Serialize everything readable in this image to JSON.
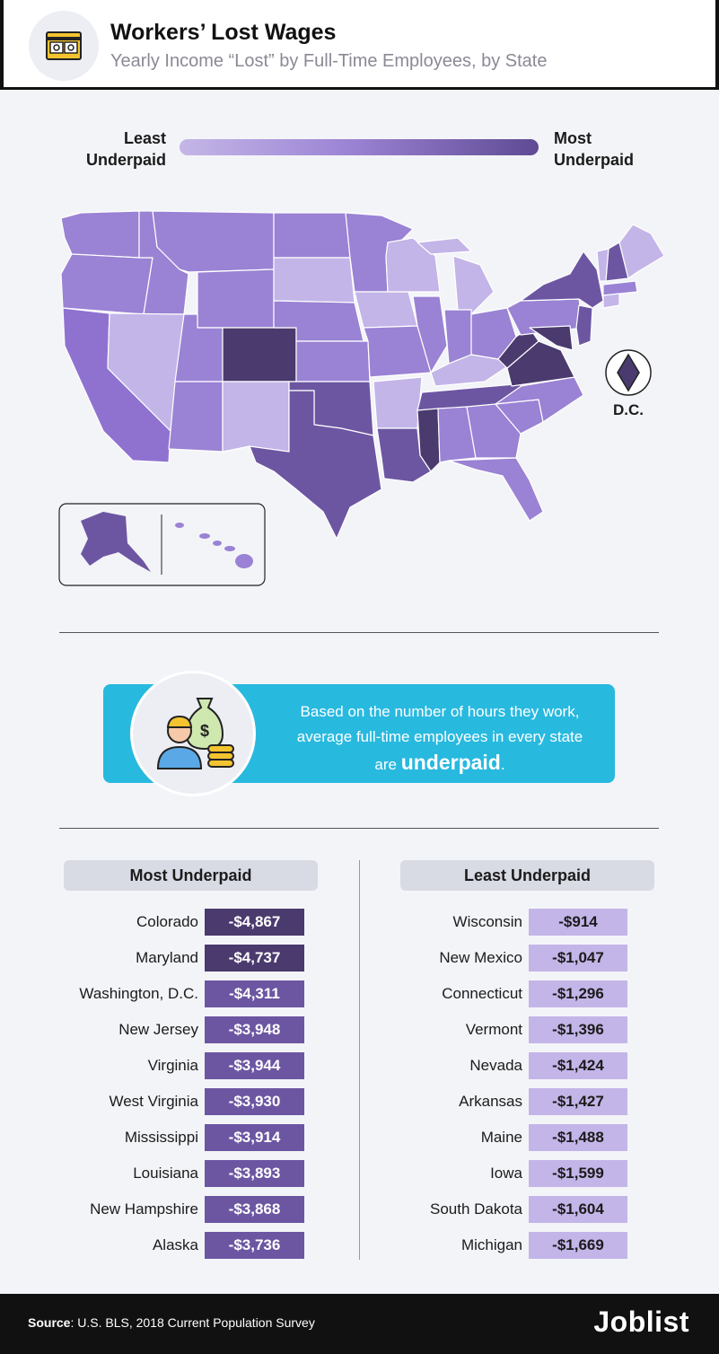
{
  "header": {
    "title": "Workers’ Lost Wages",
    "subtitle": "Yearly Income “Lost” by Full-Time Employees, by State"
  },
  "legend": {
    "left_line1": "Least",
    "left_line2": "Underpaid",
    "right_line1": "Most",
    "right_line2": "Underpaid"
  },
  "map": {
    "dc_label": "D.C."
  },
  "callout": {
    "line1": "Based on the number of hours they work,",
    "line2": "average full-time employees in every state",
    "line3_prefix": "are ",
    "emphasis": "underpaid",
    "line3_suffix": "."
  },
  "tables": {
    "most_header": "Most Underpaid",
    "least_header": "Least Underpaid",
    "most": [
      {
        "state": "Colorado",
        "value": "-$4,867"
      },
      {
        "state": "Maryland",
        "value": "-$4,737"
      },
      {
        "state": "Washington, D.C.",
        "value": "-$4,311"
      },
      {
        "state": "New Jersey",
        "value": "-$3,948"
      },
      {
        "state": "Virginia",
        "value": "-$3,944"
      },
      {
        "state": "West Virginia",
        "value": "-$3,930"
      },
      {
        "state": "Mississippi",
        "value": "-$3,914"
      },
      {
        "state": "Louisiana",
        "value": "-$3,893"
      },
      {
        "state": "New Hampshire",
        "value": "-$3,868"
      },
      {
        "state": "Alaska",
        "value": "-$3,736"
      }
    ],
    "least": [
      {
        "state": "Wisconsin",
        "value": "-$914"
      },
      {
        "state": "New Mexico",
        "value": "-$1,047"
      },
      {
        "state": "Connecticut",
        "value": "-$1,296"
      },
      {
        "state": "Vermont",
        "value": "-$1,396"
      },
      {
        "state": "Nevada",
        "value": "-$1,424"
      },
      {
        "state": "Arkansas",
        "value": "-$1,427"
      },
      {
        "state": "Maine",
        "value": "-$1,488"
      },
      {
        "state": "Iowa",
        "value": "-$1,599"
      },
      {
        "state": "South Dakota",
        "value": "-$1,604"
      },
      {
        "state": "Michigan",
        "value": "-$1,669"
      }
    ]
  },
  "colors": {
    "darkest": "#4a3a6e",
    "dark": "#6c56a2",
    "medium": "#9a82d4",
    "light": "#c3b5e8",
    "callout": "#28b9df"
  },
  "footer": {
    "source_label": "Source",
    "source_text": ": U.S. BLS, 2018 Current Population Survey",
    "brand": "Joblist"
  }
}
